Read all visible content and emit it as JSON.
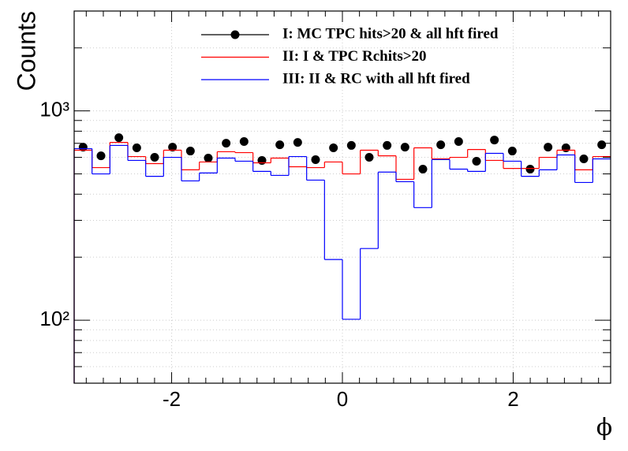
{
  "chart_data": {
    "type": "histogram",
    "xlabel": "ϕ",
    "ylabel": "Counts",
    "log_y": true,
    "grid": true,
    "legend": "top",
    "xlim": [
      -3.1416,
      3.1416
    ],
    "ylim": [
      50,
      3000
    ],
    "xticks": [
      -2,
      0,
      2
    ],
    "xminorticks": [
      -3,
      -2.8,
      -2.6,
      -2.4,
      -2.2,
      -1.8,
      -1.6,
      -1.4,
      -1.2,
      -1,
      -0.8,
      -0.6,
      -0.4,
      -0.2,
      0.2,
      0.4,
      0.6,
      0.8,
      1,
      1.2,
      1.4,
      1.6,
      1.8,
      2.2,
      2.4,
      2.6,
      2.8,
      3
    ],
    "yticks": [
      {
        "value": 100,
        "label": "10²"
      },
      {
        "value": 1000,
        "label": "10³"
      }
    ],
    "yminorticks": [
      50,
      60,
      70,
      80,
      90,
      200,
      300,
      400,
      500,
      600,
      700,
      800,
      900,
      2000,
      3000
    ],
    "bins": [
      -3.1416,
      -2.9322,
      -2.7227,
      -2.5133,
      -2.3038,
      -2.0944,
      -1.885,
      -1.6755,
      -1.4661,
      -1.2566,
      -1.0472,
      -0.8378,
      -0.6283,
      -0.4189,
      -0.2094,
      0,
      0.2094,
      0.4189,
      0.6283,
      0.8378,
      1.0472,
      1.2566,
      1.4661,
      1.6755,
      1.885,
      2.0944,
      2.3038,
      2.5133,
      2.7227,
      2.9322,
      3.1416
    ],
    "series": [
      {
        "name": "I: MC TPC hits>20 & all hft fired",
        "color": "#000000",
        "style": "marker",
        "values": [
          671,
          610,
          745,
          666,
          600,
          671,
          643,
          595,
          701,
          714,
          580,
          689,
          707,
          585,
          666,
          684,
          600,
          684,
          671,
          527,
          689,
          714,
          575,
          726,
          643,
          527,
          671,
          666,
          590,
          689
        ]
      },
      {
        "name": "II: I & TPC Rchits>20",
        "color": "#ff0000",
        "style": "step",
        "values": [
          649,
          536,
          707,
          605,
          560,
          649,
          523,
          570,
          638,
          632,
          565,
          595,
          541,
          536,
          570,
          500,
          649,
          610,
          471,
          666,
          590,
          600,
          654,
          580,
          531,
          531,
          600,
          649,
          523,
          605
        ]
      },
      {
        "name": "III: II & RC with all hft fired",
        "color": "#0000ff",
        "style": "step",
        "values": [
          660,
          500,
          684,
          580,
          487,
          600,
          463,
          505,
          595,
          575,
          514,
          492,
          605,
          467,
          195,
          101,
          220,
          510,
          459,
          345,
          585,
          527,
          514,
          627,
          575,
          487,
          523,
          616,
          455,
          590
        ]
      }
    ]
  }
}
